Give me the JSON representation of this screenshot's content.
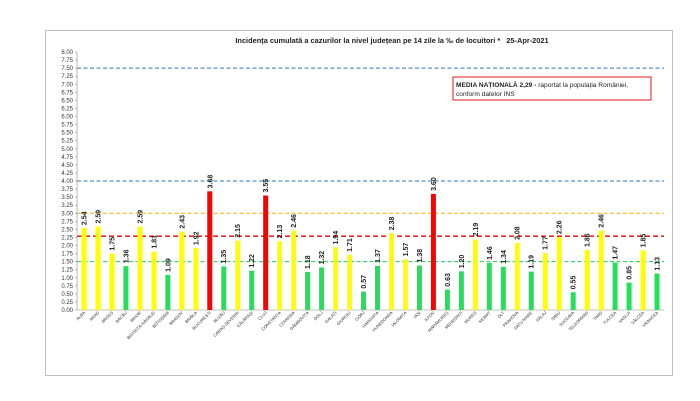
{
  "chart_data": {
    "type": "bar",
    "title": "Incidența cumulată a cazurilor la nivel județean pe 14 zile la ‰ de locuitori *",
    "date": "25-Apr-2021",
    "ylim": [
      0,
      8
    ],
    "yticks": [
      "0.00",
      "0.25",
      "0.50",
      "0.75",
      "1.00",
      "1.25",
      "1.50",
      "1.75",
      "2.00",
      "2.25",
      "2.50",
      "2.75",
      "3.00",
      "3.25",
      "3.50",
      "3.75",
      "4.00",
      "4.25",
      "4.50",
      "4.75",
      "5.00",
      "5.25",
      "5.50",
      "5.75",
      "6.00",
      "6.25",
      "6.50",
      "6.75",
      "7.00",
      "7.25",
      "7.50",
      "7.75",
      "8.00"
    ],
    "grid": false,
    "categories": [
      "ALBA",
      "ARAD",
      "ARGEȘ",
      "BACĂU",
      "BIHOR",
      "BISTRIȚA-NĂSĂUD",
      "BOTOȘANI",
      "BRAȘOV",
      "BRĂILA",
      "BUCUREȘTI",
      "BUZĂU",
      "CARAȘ-SEVERIN",
      "CĂLĂRAȘI",
      "CLUJ",
      "CONSTANȚA",
      "COVASNA",
      "DÂMBOVIȚA",
      "DOLJ",
      "GALAȚI",
      "GIURGIU",
      "GORJ",
      "HARGHITA",
      "HUNEDOARA",
      "IALOMIȚA",
      "IAȘI",
      "ILFOV",
      "MARAMUREȘ",
      "MEHEDINȚI",
      "MUREȘ",
      "NEAMȚ",
      "OLT",
      "PRAHOVA",
      "SATU MARE",
      "SĂLAJ",
      "SIBIU",
      "SUCEAVA",
      "TELEORMAN",
      "TIMIȘ",
      "TULCEA",
      "VASLUI",
      "VÂLCEA",
      "VRANCEA"
    ],
    "values": [
      2.54,
      2.59,
      1.75,
      1.36,
      2.59,
      1.81,
      1.09,
      2.43,
      1.92,
      3.68,
      1.35,
      2.15,
      1.22,
      3.55,
      2.13,
      2.46,
      1.18,
      1.32,
      1.94,
      1.71,
      0.57,
      1.37,
      2.38,
      1.57,
      1.38,
      3.6,
      0.63,
      1.2,
      2.19,
      1.46,
      1.34,
      2.08,
      1.19,
      1.77,
      2.26,
      0.55,
      1.86,
      2.46,
      1.47,
      0.85,
      1.85,
      1.13
    ],
    "value_labels": [
      "2.54",
      "2.59",
      "1.75",
      "1.36",
      "2.59",
      "1.81",
      "1.09",
      "2.43",
      "1.92",
      "3.68",
      "1.35",
      "2.15",
      "1.22",
      "3.55",
      "2.13",
      "2.46",
      "1.18",
      "1.32",
      "1.94",
      "1.71",
      "0.57",
      "1.37",
      "2.38",
      "1.57",
      "1.38",
      "3.60",
      "0.63",
      "1.20",
      "2.19",
      "1.46",
      "1.34",
      "2.08",
      "1.19",
      "1.77",
      "2.26",
      "0.55",
      "1.86",
      "2.46",
      "1.47",
      "0.85",
      "1.85",
      "1.13"
    ],
    "thresholds": [
      {
        "value": 1.5,
        "color": "#1ec95a"
      },
      {
        "value": 3.0,
        "color": "#f0b400"
      },
      {
        "value": 4.0,
        "color": "#2e75b6"
      },
      {
        "value": 7.5,
        "color": "#2e75b6"
      }
    ],
    "national_average": {
      "value": 2.29,
      "color": "#e00000"
    },
    "colors": {
      "green": "#22e05a",
      "yellow": "#ffff00",
      "red": "#ff0000",
      "axis": "#888888"
    },
    "annotation": {
      "bold": "MEDIA NAȚIONALĂ  2,29 -",
      "text": " raportat la populația României,",
      "line2": "conform datelor INS"
    }
  }
}
